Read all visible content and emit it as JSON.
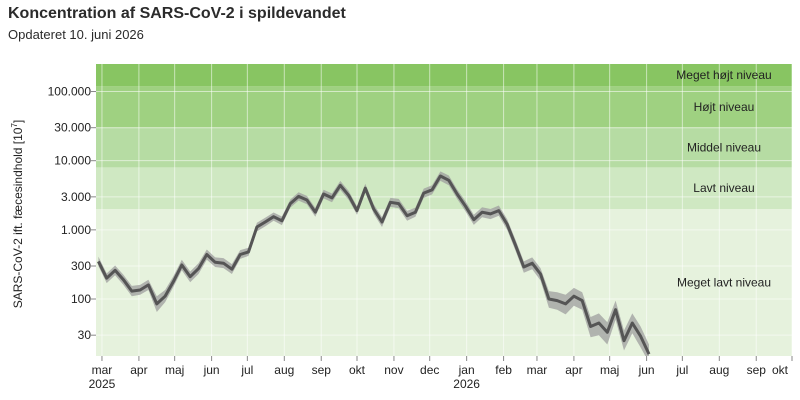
{
  "title": "Koncentration af SARS-CoV-2 i spildevandet",
  "subtitle": "Opdateret 10. juni 2026",
  "chart_data": {
    "type": "line",
    "scale": "log",
    "ylabel_main": "SARS-CoV-2 ift. fæcesindhold [10",
    "ylabel_sup": "7",
    "ylabel_end": "]",
    "ylim": [
      15,
      250000
    ],
    "xlim": [
      "2025-02-24",
      "2026-10-01"
    ],
    "y_ticks": [
      {
        "value": 30,
        "label": "30"
      },
      {
        "value": 100,
        "label": "100"
      },
      {
        "value": 300,
        "label": "300"
      },
      {
        "value": 1000,
        "label": "1.000"
      },
      {
        "value": 3000,
        "label": "3.000"
      },
      {
        "value": 10000,
        "label": "10.000"
      },
      {
        "value": 30000,
        "label": "30.000"
      },
      {
        "value": 100000,
        "label": "100.000"
      }
    ],
    "x_ticks": [
      {
        "date": "2025-03-01",
        "label": "mar",
        "year": "2025"
      },
      {
        "date": "2025-04-01",
        "label": "apr"
      },
      {
        "date": "2025-05-01",
        "label": "maj"
      },
      {
        "date": "2025-06-01",
        "label": "jun"
      },
      {
        "date": "2025-07-01",
        "label": "jul"
      },
      {
        "date": "2025-08-01",
        "label": "aug"
      },
      {
        "date": "2025-09-01",
        "label": "sep"
      },
      {
        "date": "2025-10-01",
        "label": "okt"
      },
      {
        "date": "2025-11-01",
        "label": "nov"
      },
      {
        "date": "2025-12-01",
        "label": "dec"
      },
      {
        "date": "2026-01-01",
        "label": "jan",
        "year": "2026"
      },
      {
        "date": "2026-02-01",
        "label": "feb"
      },
      {
        "date": "2026-03-01",
        "label": "mar"
      },
      {
        "date": "2026-04-01",
        "label": "apr"
      },
      {
        "date": "2026-05-01",
        "label": "maj"
      },
      {
        "date": "2026-06-01",
        "label": "jun"
      },
      {
        "date": "2026-07-01",
        "label": "jul"
      },
      {
        "date": "2026-08-01",
        "label": "aug"
      },
      {
        "date": "2026-09-01",
        "label": "sep"
      },
      {
        "date": "2026-10-01",
        "label": "okt"
      }
    ],
    "bands": [
      {
        "label": "Meget lavt niveau",
        "from": 15,
        "to": 2000,
        "color": "#e6f2dd"
      },
      {
        "label": "Lavt niveau",
        "from": 2000,
        "to": 8000,
        "color": "#cfe8c2"
      },
      {
        "label": "Middel niveau",
        "from": 8000,
        "to": 30000,
        "color": "#b6dca3"
      },
      {
        "label": "Højt niveau",
        "from": 30000,
        "to": 120000,
        "color": "#9fd181"
      },
      {
        "label": "Meget højt niveau",
        "from": 120000,
        "to": 250000,
        "color": "#88c562"
      }
    ],
    "line_color": "#555555",
    "ribbon_color": "#9e9e9e",
    "series": [
      {
        "x": [
          "2025-02-26",
          "2025-03-05",
          "2025-03-12",
          "2025-03-19",
          "2025-03-26",
          "2025-04-02",
          "2025-04-09",
          "2025-04-16",
          "2025-04-23",
          "2025-04-30",
          "2025-05-07",
          "2025-05-14",
          "2025-05-21",
          "2025-05-28",
          "2025-06-04",
          "2025-06-11",
          "2025-06-18",
          "2025-06-25",
          "2025-07-02",
          "2025-07-09",
          "2025-07-16",
          "2025-07-23",
          "2025-07-30",
          "2025-08-06",
          "2025-08-13",
          "2025-08-20",
          "2025-08-27",
          "2025-09-03",
          "2025-09-10",
          "2025-09-17",
          "2025-09-24",
          "2025-10-01",
          "2025-10-08",
          "2025-10-15",
          "2025-10-22",
          "2025-10-29",
          "2025-11-05",
          "2025-11-12",
          "2025-11-19",
          "2025-11-26",
          "2025-12-03",
          "2025-12-10",
          "2025-12-17",
          "2025-12-24",
          "2025-12-31",
          "2026-01-07",
          "2026-01-14",
          "2026-01-21",
          "2026-01-28",
          "2026-02-04",
          "2026-02-11",
          "2026-02-18",
          "2026-02-25",
          "2026-03-04",
          "2026-03-11",
          "2026-03-18",
          "2026-03-25",
          "2026-04-01",
          "2026-04-08",
          "2026-04-15",
          "2026-04-22",
          "2026-04-29",
          "2026-05-06",
          "2026-05-13",
          "2026-05-20",
          "2026-05-27",
          "2026-06-03"
        ],
        "y": [
          350,
          200,
          260,
          190,
          130,
          135,
          160,
          85,
          110,
          180,
          310,
          210,
          275,
          440,
          340,
          330,
          270,
          440,
          480,
          1100,
          1300,
          1550,
          1350,
          2400,
          3050,
          2700,
          1800,
          3300,
          2900,
          4400,
          3150,
          1900,
          4000,
          2000,
          1300,
          2500,
          2400,
          1600,
          1800,
          3400,
          3800,
          6000,
          5200,
          3300,
          2200,
          1400,
          1800,
          1700,
          1900,
          1200,
          600,
          290,
          330,
          230,
          100,
          95,
          85,
          110,
          95,
          40,
          45,
          33,
          70,
          25,
          45,
          29,
          16
        ],
        "lo": [
          300,
          170,
          220,
          160,
          110,
          115,
          135,
          65,
          90,
          150,
          260,
          175,
          230,
          370,
          290,
          280,
          230,
          380,
          420,
          950,
          1120,
          1350,
          1170,
          2100,
          2650,
          2350,
          1550,
          2850,
          2500,
          3800,
          2700,
          1650,
          3450,
          1700,
          1100,
          2150,
          2050,
          1350,
          1550,
          2900,
          3250,
          5100,
          4400,
          2800,
          1850,
          1180,
          1520,
          1430,
          1600,
          1000,
          500,
          240,
          270,
          185,
          75,
          70,
          60,
          80,
          70,
          28,
          30,
          22,
          50,
          18,
          32,
          20,
          12
        ],
        "hi": [
          410,
          235,
          305,
          225,
          155,
          160,
          190,
          110,
          135,
          215,
          370,
          250,
          330,
          520,
          400,
          390,
          320,
          510,
          550,
          1270,
          1500,
          1780,
          1560,
          2750,
          3500,
          3100,
          2080,
          3800,
          3350,
          5100,
          3650,
          2200,
          4650,
          2350,
          1530,
          2900,
          2800,
          1880,
          2100,
          3950,
          4400,
          7000,
          6100,
          3850,
          2600,
          1650,
          2120,
          2000,
          2250,
          1420,
          720,
          350,
          400,
          280,
          130,
          125,
          115,
          145,
          125,
          55,
          62,
          46,
          95,
          35,
          62,
          40,
          22
        ]
      }
    ]
  }
}
